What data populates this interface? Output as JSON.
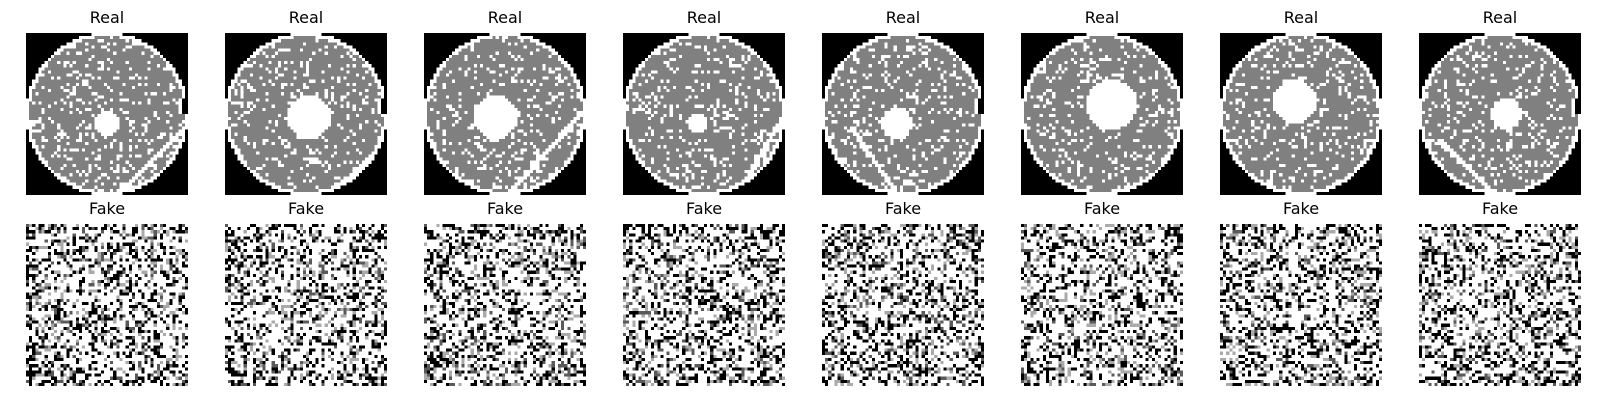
{
  "real_row": [
    {
      "title": "Real"
    },
    {
      "title": "Real"
    },
    {
      "title": "Real"
    },
    {
      "title": "Real"
    },
    {
      "title": "Real"
    },
    {
      "title": "Real"
    },
    {
      "title": "Real"
    },
    {
      "title": "Real"
    }
  ],
  "fake_row": [
    {
      "title": "Fake"
    },
    {
      "title": "Fake"
    },
    {
      "title": "Fake"
    },
    {
      "title": "Fake"
    },
    {
      "title": "Fake"
    },
    {
      "title": "Fake"
    },
    {
      "title": "Fake"
    },
    {
      "title": "Fake"
    }
  ],
  "colors": {
    "background": "#ffffff",
    "wafer_fill": "#808080",
    "defect": "#ffffff",
    "outside": "#000000"
  }
}
